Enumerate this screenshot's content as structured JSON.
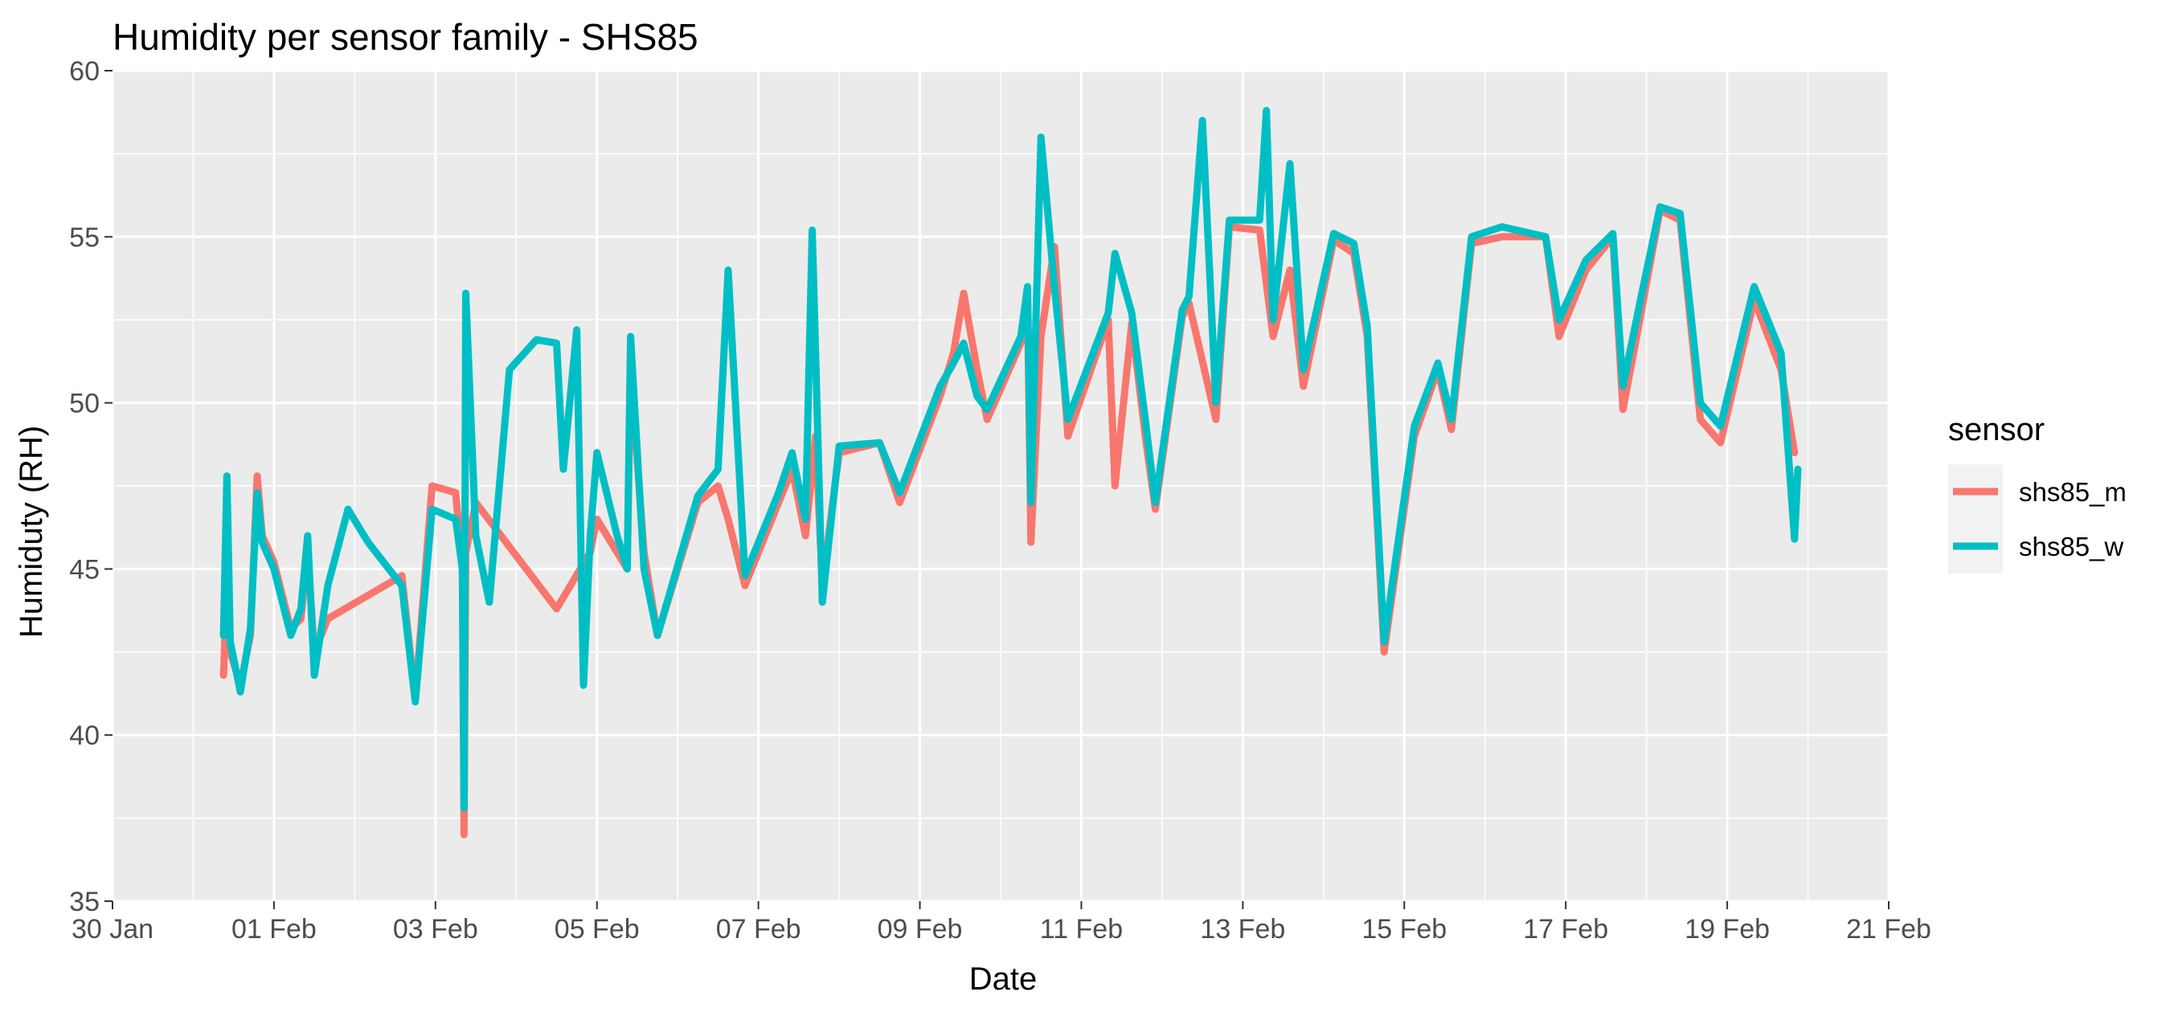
{
  "chart_data": {
    "type": "line",
    "title": "Humidity per sensor family - SHS85",
    "xlabel": "Date",
    "ylabel": "Humiduty (RH)",
    "xlim": [
      "2025-01-30",
      "2025-02-21"
    ],
    "ylim": [
      35,
      60
    ],
    "x_ticks": [
      "30 Jan",
      "01 Feb",
      "03 Feb",
      "05 Feb",
      "07 Feb",
      "09 Feb",
      "11 Feb",
      "13 Feb",
      "15 Feb",
      "17 Feb",
      "19 Feb",
      "21 Feb"
    ],
    "y_ticks": [
      "35",
      "40",
      "45",
      "50",
      "55",
      "60"
    ],
    "grid": true,
    "legend": {
      "title": "sensor",
      "position": "right"
    },
    "colors": {
      "shs85_m": "#F8766D",
      "shs85_w": "#00BFC4",
      "panel": "#EBEBEB",
      "grid": "#FFFFFF"
    },
    "series": [
      {
        "name": "shs85_m",
        "color": "#F8766D",
        "points": [
          [
            "2025-01-31T09:00",
            41.8
          ],
          [
            "2025-01-31T10:00",
            44.5
          ],
          [
            "2025-01-31T11:00",
            42.5
          ],
          [
            "2025-01-31T14:00",
            41.5
          ],
          [
            "2025-01-31T17:00",
            43.0
          ],
          [
            "2025-01-31T19:00",
            47.8
          ],
          [
            "2025-01-31T20:30",
            46.0
          ],
          [
            "2025-02-01T00:00",
            45.2
          ],
          [
            "2025-02-01T05:00",
            43.2
          ],
          [
            "2025-02-01T08:00",
            43.5
          ],
          [
            "2025-02-01T10:00",
            45.5
          ],
          [
            "2025-02-01T12:00",
            42.5
          ],
          [
            "2025-02-01T16:00",
            43.5
          ],
          [
            "2025-02-02T14:00",
            44.8
          ],
          [
            "2025-02-02T18:00",
            41.1
          ],
          [
            "2025-02-02T23:00",
            47.5
          ],
          [
            "2025-02-03T06:00",
            47.3
          ],
          [
            "2025-02-03T08:00",
            45.0
          ],
          [
            "2025-02-03T08:30",
            37.0
          ],
          [
            "2025-02-03T09:00",
            45.5
          ],
          [
            "2025-02-03T12:00",
            47.0
          ],
          [
            "2025-02-04T12:00",
            43.8
          ],
          [
            "2025-02-04T22:00",
            45.5
          ],
          [
            "2025-02-05T00:00",
            46.5
          ],
          [
            "2025-02-05T09:00",
            45.0
          ],
          [
            "2025-02-05T10:00",
            51.0
          ],
          [
            "2025-02-05T14:00",
            45.5
          ],
          [
            "2025-02-05T18:00",
            43.0
          ],
          [
            "2025-02-06T06:00",
            47.0
          ],
          [
            "2025-02-06T12:00",
            47.5
          ],
          [
            "2025-02-06T15:00",
            46.5
          ],
          [
            "2025-02-06T20:00",
            44.5
          ],
          [
            "2025-02-07T06:00",
            47.0
          ],
          [
            "2025-02-07T10:00",
            48.0
          ],
          [
            "2025-02-07T14:00",
            46.0
          ],
          [
            "2025-02-07T17:00",
            49.0
          ],
          [
            "2025-02-07T19:00",
            44.5
          ],
          [
            "2025-02-08T00:00",
            48.5
          ],
          [
            "2025-02-08T12:00",
            48.8
          ],
          [
            "2025-02-08T18:00",
            47.0
          ],
          [
            "2025-02-09T06:00",
            50.2
          ],
          [
            "2025-02-09T10:00",
            51.5
          ],
          [
            "2025-02-09T13:00",
            53.3
          ],
          [
            "2025-02-09T17:00",
            51.0
          ],
          [
            "2025-02-09T20:00",
            49.5
          ],
          [
            "2025-02-10T06:00",
            51.8
          ],
          [
            "2025-02-10T08:00",
            53.0
          ],
          [
            "2025-02-10T09:00",
            45.8
          ],
          [
            "2025-02-10T12:00",
            52.0
          ],
          [
            "2025-02-10T16:00",
            54.7
          ],
          [
            "2025-02-10T20:00",
            49.0
          ],
          [
            "2025-02-11T08:00",
            52.5
          ],
          [
            "2025-02-11T10:00",
            47.5
          ],
          [
            "2025-02-11T15:00",
            52.4
          ],
          [
            "2025-02-11T19:00",
            49.0
          ],
          [
            "2025-02-11T22:00",
            46.8
          ],
          [
            "2025-02-12T06:00",
            52.6
          ],
          [
            "2025-02-12T08:00",
            53.0
          ],
          [
            "2025-02-12T16:00",
            49.5
          ],
          [
            "2025-02-12T20:00",
            55.3
          ],
          [
            "2025-02-13T05:00",
            55.2
          ],
          [
            "2025-02-13T09:00",
            52.0
          ],
          [
            "2025-02-13T14:00",
            54.0
          ],
          [
            "2025-02-13T18:00",
            50.5
          ],
          [
            "2025-02-14T03:00",
            54.9
          ],
          [
            "2025-02-14T09:00",
            54.5
          ],
          [
            "2025-02-14T13:00",
            52.0
          ],
          [
            "2025-02-14T18:00",
            42.5
          ],
          [
            "2025-02-15T03:00",
            49.0
          ],
          [
            "2025-02-15T10:00",
            51.0
          ],
          [
            "2025-02-15T14:00",
            49.2
          ],
          [
            "2025-02-15T20:00",
            54.8
          ],
          [
            "2025-02-16T05:00",
            55.0
          ],
          [
            "2025-02-16T18:00",
            55.0
          ],
          [
            "2025-02-16T22:00",
            52.0
          ],
          [
            "2025-02-17T06:00",
            54.0
          ],
          [
            "2025-02-17T14:00",
            55.0
          ],
          [
            "2025-02-17T17:00",
            49.8
          ],
          [
            "2025-02-17T22:00",
            52.5
          ],
          [
            "2025-02-18T04:00",
            55.8
          ],
          [
            "2025-02-18T10:00",
            55.5
          ],
          [
            "2025-02-18T16:00",
            49.5
          ],
          [
            "2025-02-18T22:00",
            48.8
          ],
          [
            "2025-02-19T08:00",
            53.1
          ],
          [
            "2025-02-19T16:00",
            51.0
          ],
          [
            "2025-02-19T20:00",
            48.5
          ]
        ]
      },
      {
        "name": "shs85_w",
        "color": "#00BFC4",
        "points": [
          [
            "2025-01-31T09:00",
            43.0
          ],
          [
            "2025-01-31T10:00",
            47.8
          ],
          [
            "2025-01-31T11:00",
            42.8
          ],
          [
            "2025-01-31T14:00",
            41.3
          ],
          [
            "2025-01-31T17:00",
            43.2
          ],
          [
            "2025-01-31T19:00",
            47.3
          ],
          [
            "2025-01-31T20:30",
            45.8
          ],
          [
            "2025-02-01T00:00",
            45.0
          ],
          [
            "2025-02-01T05:00",
            43.0
          ],
          [
            "2025-02-01T08:00",
            43.8
          ],
          [
            "2025-02-01T10:00",
            46.0
          ],
          [
            "2025-02-01T12:00",
            41.8
          ],
          [
            "2025-02-01T16:00",
            44.5
          ],
          [
            "2025-02-01T22:00",
            46.8
          ],
          [
            "2025-02-02T04:00",
            45.8
          ],
          [
            "2025-02-02T14:00",
            44.5
          ],
          [
            "2025-02-02T18:00",
            41.0
          ],
          [
            "2025-02-02T23:00",
            46.8
          ],
          [
            "2025-02-03T06:00",
            46.5
          ],
          [
            "2025-02-03T08:00",
            45.0
          ],
          [
            "2025-02-03T08:30",
            37.8
          ],
          [
            "2025-02-03T09:00",
            53.3
          ],
          [
            "2025-02-03T12:00",
            46.0
          ],
          [
            "2025-02-03T16:00",
            44.0
          ],
          [
            "2025-02-03T22:00",
            51.0
          ],
          [
            "2025-02-04T06:00",
            51.9
          ],
          [
            "2025-02-04T12:00",
            51.8
          ],
          [
            "2025-02-04T14:00",
            48.0
          ],
          [
            "2025-02-04T18:00",
            52.2
          ],
          [
            "2025-02-04T20:00",
            41.5
          ],
          [
            "2025-02-04T22:00",
            46.0
          ],
          [
            "2025-02-05T00:00",
            48.5
          ],
          [
            "2025-02-05T06:00",
            46.0
          ],
          [
            "2025-02-05T09:00",
            45.0
          ],
          [
            "2025-02-05T10:00",
            52.0
          ],
          [
            "2025-02-05T14:00",
            45.0
          ],
          [
            "2025-02-05T18:00",
            43.0
          ],
          [
            "2025-02-06T06:00",
            47.2
          ],
          [
            "2025-02-06T12:00",
            48.0
          ],
          [
            "2025-02-06T15:00",
            54.0
          ],
          [
            "2025-02-06T20:00",
            44.8
          ],
          [
            "2025-02-07T06:00",
            47.3
          ],
          [
            "2025-02-07T10:00",
            48.5
          ],
          [
            "2025-02-07T14:00",
            46.5
          ],
          [
            "2025-02-07T16:00",
            55.2
          ],
          [
            "2025-02-07T19:00",
            44.0
          ],
          [
            "2025-02-08T00:00",
            48.7
          ],
          [
            "2025-02-08T12:00",
            48.8
          ],
          [
            "2025-02-08T18:00",
            47.3
          ],
          [
            "2025-02-09T06:00",
            50.5
          ],
          [
            "2025-02-09T10:00",
            51.2
          ],
          [
            "2025-02-09T13:00",
            51.8
          ],
          [
            "2025-02-09T17:00",
            50.2
          ],
          [
            "2025-02-09T20:00",
            49.8
          ],
          [
            "2025-02-10T06:00",
            52.0
          ],
          [
            "2025-02-10T08:00",
            53.5
          ],
          [
            "2025-02-10T09:00",
            47.0
          ],
          [
            "2025-02-10T12:00",
            58.0
          ],
          [
            "2025-02-10T16:00",
            53.5
          ],
          [
            "2025-02-10T20:00",
            49.5
          ],
          [
            "2025-02-11T08:00",
            52.7
          ],
          [
            "2025-02-11T10:00",
            54.5
          ],
          [
            "2025-02-11T15:00",
            52.7
          ],
          [
            "2025-02-11T19:00",
            49.5
          ],
          [
            "2025-02-11T22:00",
            47.0
          ],
          [
            "2025-02-12T06:00",
            52.8
          ],
          [
            "2025-02-12T08:00",
            53.2
          ],
          [
            "2025-02-12T12:00",
            58.5
          ],
          [
            "2025-02-12T16:00",
            50.0
          ],
          [
            "2025-02-12T20:00",
            55.5
          ],
          [
            "2025-02-13T05:00",
            55.5
          ],
          [
            "2025-02-13T07:00",
            58.8
          ],
          [
            "2025-02-13T09:00",
            52.5
          ],
          [
            "2025-02-13T14:00",
            57.2
          ],
          [
            "2025-02-13T18:00",
            51.0
          ],
          [
            "2025-02-14T03:00",
            55.1
          ],
          [
            "2025-02-14T09:00",
            54.8
          ],
          [
            "2025-02-14T13:00",
            52.3
          ],
          [
            "2025-02-14T18:00",
            42.8
          ],
          [
            "2025-02-15T03:00",
            49.3
          ],
          [
            "2025-02-15T10:00",
            51.2
          ],
          [
            "2025-02-15T14:00",
            49.5
          ],
          [
            "2025-02-15T20:00",
            55.0
          ],
          [
            "2025-02-16T05:00",
            55.3
          ],
          [
            "2025-02-16T18:00",
            55.0
          ],
          [
            "2025-02-16T22:00",
            52.5
          ],
          [
            "2025-02-17T06:00",
            54.3
          ],
          [
            "2025-02-17T14:00",
            55.1
          ],
          [
            "2025-02-17T17:00",
            50.5
          ],
          [
            "2025-02-17T22:00",
            53.0
          ],
          [
            "2025-02-18T04:00",
            55.9
          ],
          [
            "2025-02-18T10:00",
            55.7
          ],
          [
            "2025-02-18T16:00",
            50.0
          ],
          [
            "2025-02-18T22:00",
            49.3
          ],
          [
            "2025-02-19T08:00",
            53.5
          ],
          [
            "2025-02-19T16:00",
            51.5
          ],
          [
            "2025-02-19T20:00",
            45.9
          ],
          [
            "2025-02-19T21:00",
            48.0
          ]
        ]
      }
    ]
  }
}
